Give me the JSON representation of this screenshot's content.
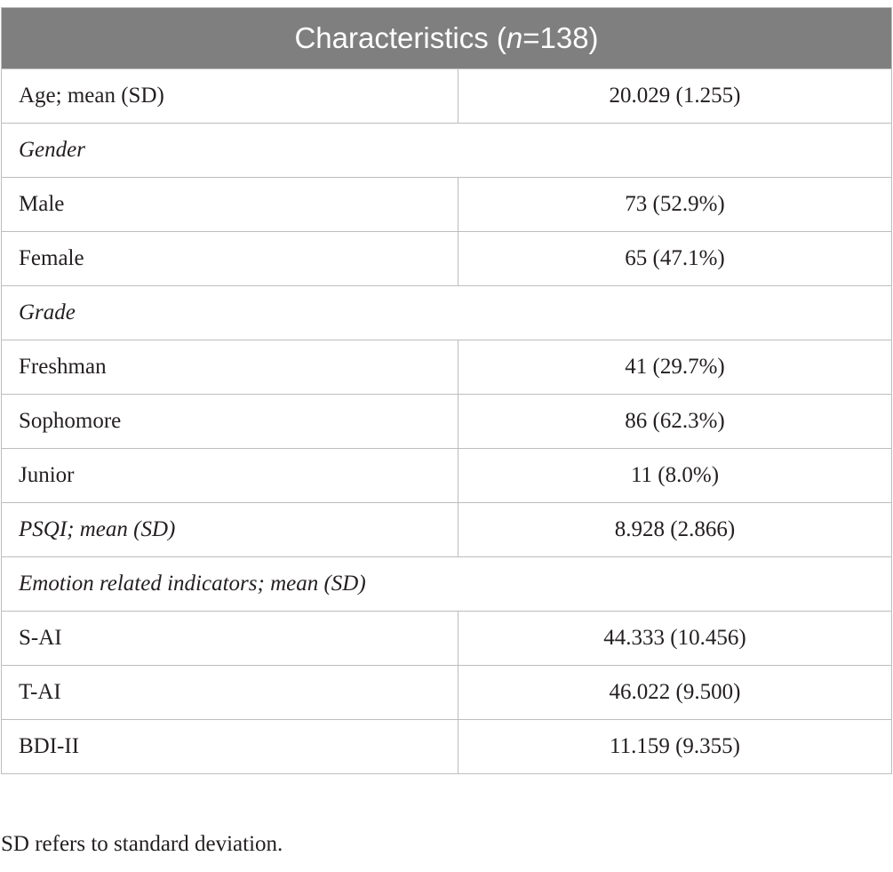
{
  "table": {
    "header": {
      "pre": "Characteristics (",
      "n_symbol": "n",
      "post": "=138)"
    },
    "rows": {
      "age": {
        "label": "Age; mean (SD)",
        "value": "20.029 (1.255)"
      },
      "gender_section": "Gender",
      "male": {
        "label": "Male",
        "value": "73 (52.9%)"
      },
      "female": {
        "label": "Female",
        "value": "65 (47.1%)"
      },
      "grade_section": "Grade",
      "freshman": {
        "label": "Freshman",
        "value": "41 (29.7%)"
      },
      "sophomore": {
        "label": "Sophomore",
        "value": "86 (62.3%)"
      },
      "junior": {
        "label": "Junior",
        "value": "11 (8.0%)"
      },
      "psqi": {
        "label": "PSQI; mean (SD)",
        "value": "8.928 (2.866)"
      },
      "emotion_section": "Emotion related indicators; mean (SD)",
      "sai": {
        "label": "S-AI",
        "value": "44.333 (10.456)"
      },
      "tai": {
        "label": "T-AI",
        "value": "46.022 (9.500)"
      },
      "bdi": {
        "label": "BDI-II",
        "value": "11.159 (9.355)"
      }
    }
  },
  "footnote": "SD refers to standard deviation."
}
